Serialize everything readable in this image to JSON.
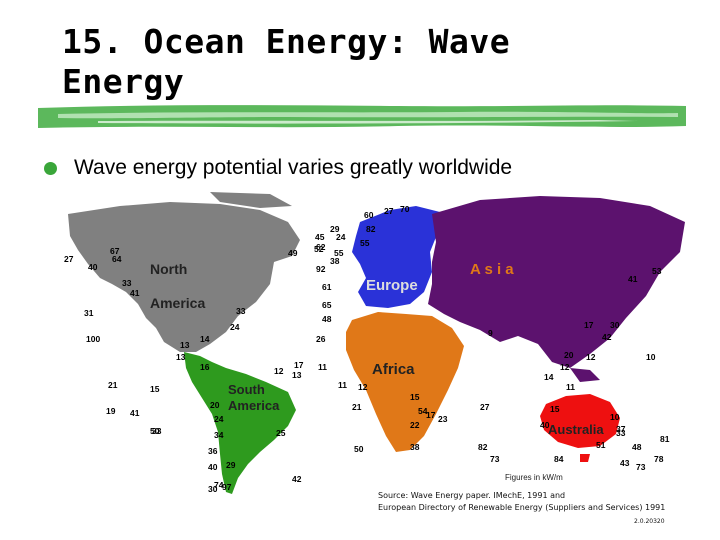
{
  "slide": {
    "title_line1": "15.  Ocean Energy: Wave",
    "title_line2": "Energy",
    "bullet": "Wave energy potential varies greatly worldwide",
    "figure_note": "Figures in kW/m",
    "source_line1": "Source: Wave Energy paper. IMechE, 1991 and",
    "source_line2": "European Directory of Renewable Energy (Suppliers and Services) 1991",
    "slide_number": "2.0.20320"
  },
  "colors": {
    "accent_green": "#3aa63a",
    "bar_green": "#5cb85c",
    "north_america": "#808080",
    "south_america": "#2e9a1e",
    "europe": "#2a32d8",
    "asia": "#5c126e",
    "africa": "#e07818",
    "australia": "#ee1010"
  },
  "map": {
    "regions": [
      {
        "name": "North",
        "bind": "north"
      },
      {
        "name": "America",
        "bind": "america"
      },
      {
        "name": "Europe",
        "bind": "europe"
      },
      {
        "name": "A s i a",
        "bind": "asia"
      },
      {
        "name": "Africa",
        "bind": "africa"
      },
      {
        "name": "South",
        "bind": "south"
      },
      {
        "name": "America",
        "bind": "samerica"
      },
      {
        "name": "Australia",
        "bind": "australia"
      }
    ],
    "values": [
      "27",
      "40",
      "64",
      "67",
      "29",
      "45",
      "49",
      "41",
      "33",
      "31",
      "100",
      "24",
      "14",
      "13",
      "33",
      "65",
      "48",
      "26",
      "11",
      "16",
      "21",
      "20",
      "24",
      "34",
      "36",
      "40",
      "30",
      "50",
      "19",
      "41",
      "33",
      "29",
      "97",
      "74",
      "42",
      "25",
      "12",
      "13",
      "17",
      "11",
      "12",
      "21",
      "15",
      "22",
      "17",
      "23",
      "38",
      "50",
      "82",
      "73",
      "27",
      "14",
      "12",
      "17",
      "30",
      "42",
      "12",
      "20",
      "10",
      "40",
      "15",
      "11",
      "33",
      "37",
      "48",
      "81",
      "73",
      "43",
      "84",
      "51",
      "78",
      "10",
      "53",
      "41",
      "9",
      "54",
      "92",
      "55",
      "62",
      "38",
      "24",
      "27",
      "70",
      "60",
      "52",
      "61",
      "82",
      "55",
      "13",
      "15"
    ]
  }
}
